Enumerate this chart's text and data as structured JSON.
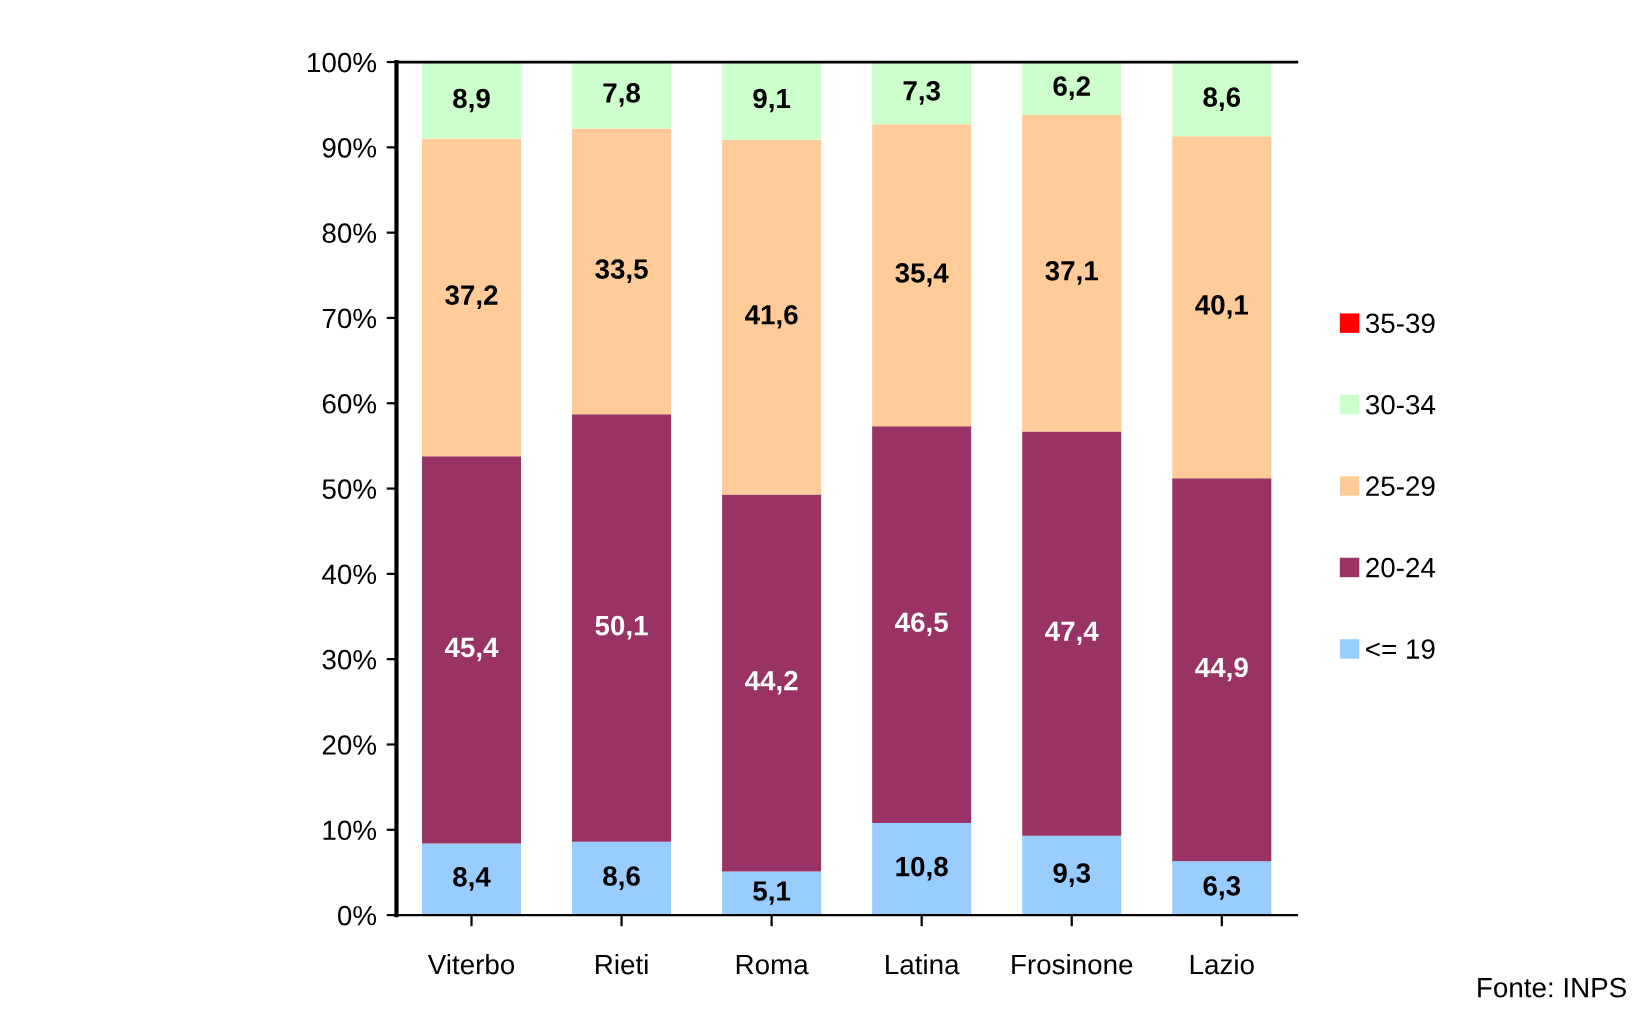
{
  "chart_data": {
    "type": "bar",
    "stacked": true,
    "categories": [
      "Viterbo",
      "Rieti",
      "Roma",
      "Latina",
      "Frosinone",
      "Lazio"
    ],
    "series": [
      {
        "name": "<= 19",
        "color": "#99ccff",
        "values": [
          8.4,
          8.6,
          5.1,
          10.8,
          9.3,
          6.3
        ],
        "value_labels": [
          "8,4",
          "8,6",
          "5,1",
          "10,8",
          "9,3",
          "6,3"
        ]
      },
      {
        "name": "20-24",
        "color": "#993366",
        "values": [
          45.4,
          50.1,
          44.2,
          46.5,
          47.4,
          44.9
        ],
        "value_labels": [
          "45,4",
          "50,1",
          "44,2",
          "46,5",
          "47,4",
          "44,9"
        ]
      },
      {
        "name": "25-29",
        "color": "#ffcc99",
        "values": [
          37.2,
          33.5,
          41.6,
          35.4,
          37.1,
          40.1
        ],
        "value_labels": [
          "37,2",
          "33,5",
          "41,6",
          "35,4",
          "37,1",
          "40,1"
        ]
      },
      {
        "name": "30-34",
        "color": "#ccffcc",
        "values": [
          8.9,
          7.8,
          9.1,
          7.3,
          6.2,
          8.6
        ],
        "value_labels": [
          "8,9",
          "7,8",
          "9,1",
          "7,3",
          "6,2",
          "8,6"
        ]
      },
      {
        "name": "35-39",
        "color": "#ff0000",
        "values": [
          null,
          null,
          null,
          null,
          null,
          null
        ]
      }
    ],
    "ylim": [
      0,
      100
    ],
    "yticks": [
      {
        "value": 0,
        "label": "0%"
      },
      {
        "value": 10,
        "label": "10%"
      },
      {
        "value": 20,
        "label": "20%"
      },
      {
        "value": 30,
        "label": "30%"
      },
      {
        "value": 40,
        "label": "40%"
      },
      {
        "value": 50,
        "label": "50%"
      },
      {
        "value": 60,
        "label": "60%"
      },
      {
        "value": 70,
        "label": "70%"
      },
      {
        "value": 80,
        "label": "80%"
      },
      {
        "value": 90,
        "label": "90%"
      },
      {
        "value": 100,
        "label": "100%"
      }
    ],
    "grid": false,
    "legend": "right",
    "annotations": [
      "Fonte: INPS"
    ]
  }
}
